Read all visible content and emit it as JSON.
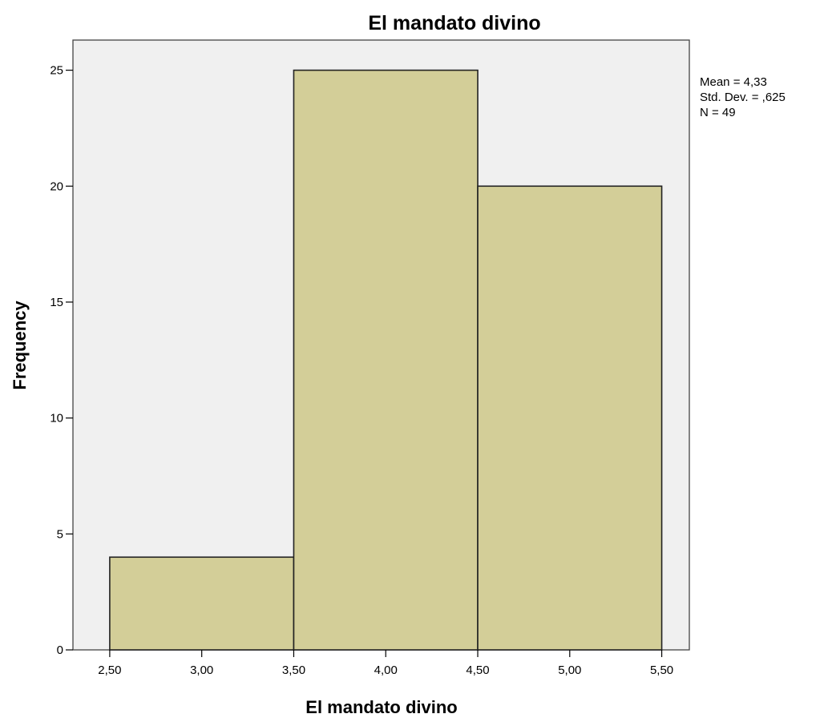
{
  "chart_data": {
    "type": "bar",
    "subtype": "histogram",
    "title": "El mandato divino",
    "xlabel": "El mandato divino",
    "ylabel": "Frequency",
    "bins": [
      {
        "start": 2.5,
        "end": 3.5,
        "value": 4
      },
      {
        "start": 3.5,
        "end": 4.5,
        "value": 25
      },
      {
        "start": 4.5,
        "end": 5.5,
        "value": 20
      }
    ],
    "xlim": [
      2.3,
      5.65
    ],
    "ylim": [
      0,
      26.3
    ],
    "x_ticks": [
      {
        "value": 2.5,
        "label": "2,50"
      },
      {
        "value": 3.0,
        "label": "3,00"
      },
      {
        "value": 3.5,
        "label": "3,50"
      },
      {
        "value": 4.0,
        "label": "4,00"
      },
      {
        "value": 4.5,
        "label": "4,50"
      },
      {
        "value": 5.0,
        "label": "5,00"
      },
      {
        "value": 5.5,
        "label": "5,50"
      }
    ],
    "y_ticks": [
      {
        "value": 0,
        "label": "0"
      },
      {
        "value": 5,
        "label": "5"
      },
      {
        "value": 10,
        "label": "10"
      },
      {
        "value": 15,
        "label": "15"
      },
      {
        "value": 20,
        "label": "20"
      },
      {
        "value": 25,
        "label": "25"
      }
    ],
    "stats": {
      "mean": "Mean = 4,33",
      "std_dev": "Std. Dev. = ,625",
      "n": "N = 49"
    },
    "grid": false,
    "legend": "none",
    "colors": {
      "bar_fill": "#d3ce98",
      "bar_stroke": "#222222",
      "plot_background": "#f0f0f0",
      "page_background": "#ffffff"
    }
  }
}
